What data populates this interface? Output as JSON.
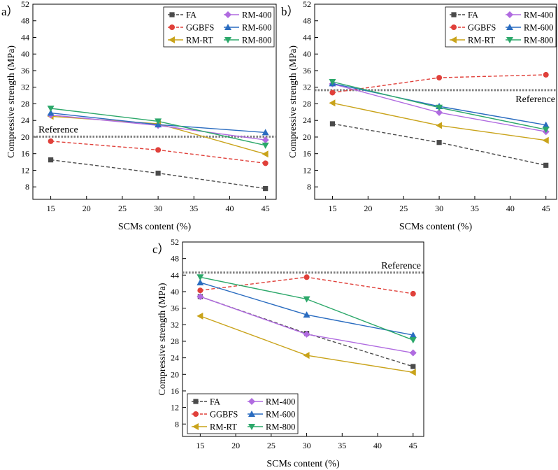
{
  "chart_data": [
    {
      "type": "line",
      "panel_label": "a）",
      "xlabel": "SCMs content (%)",
      "ylabel": "Compressive strength (MPa)",
      "xlim": [
        12.5,
        46.5
      ],
      "ylim": [
        5,
        52
      ],
      "xticks": [
        15,
        20,
        25,
        30,
        35,
        40,
        45
      ],
      "yticks": [
        8,
        12,
        16,
        20,
        24,
        28,
        32,
        36,
        40,
        44,
        48,
        52
      ],
      "x": [
        15,
        30,
        45
      ],
      "reference": {
        "label": "Reference",
        "value": 20.1
      },
      "legend_position": "top-right",
      "series": [
        {
          "name": "FA",
          "values": [
            14.5,
            11.3,
            7.6
          ]
        },
        {
          "name": "GGBFS",
          "values": [
            19.0,
            16.9,
            13.7
          ]
        },
        {
          "name": "RM-RT",
          "values": [
            25.0,
            23.2,
            15.9
          ]
        },
        {
          "name": "RM-400",
          "values": [
            25.3,
            22.8,
            19.3
          ]
        },
        {
          "name": "RM-600",
          "values": [
            25.8,
            23.0,
            21.1
          ]
        },
        {
          "name": "RM-800",
          "values": [
            26.9,
            23.8,
            18.0
          ]
        }
      ]
    },
    {
      "type": "line",
      "panel_label": "b）",
      "xlabel": "SCMs content (%)",
      "ylabel": "Compressive strength (MPa)",
      "xlim": [
        12.5,
        46.5
      ],
      "ylim": [
        5,
        52
      ],
      "xticks": [
        15,
        20,
        25,
        30,
        35,
        40,
        45
      ],
      "yticks": [
        8,
        12,
        16,
        20,
        24,
        28,
        32,
        36,
        40,
        44,
        48,
        52
      ],
      "x": [
        15,
        30,
        45
      ],
      "reference": {
        "label": "Reference",
        "value": 31.3
      },
      "legend_position": "top-right",
      "series": [
        {
          "name": "FA",
          "values": [
            23.2,
            18.7,
            13.2
          ]
        },
        {
          "name": "GGBFS",
          "values": [
            30.7,
            34.3,
            35.0
          ]
        },
        {
          "name": "RM-RT",
          "values": [
            28.2,
            22.8,
            19.2
          ]
        },
        {
          "name": "RM-400",
          "values": [
            32.8,
            25.9,
            21.3
          ]
        },
        {
          "name": "RM-600",
          "values": [
            32.9,
            27.4,
            22.9
          ]
        },
        {
          "name": "RM-800",
          "values": [
            33.3,
            27.1,
            21.8
          ]
        }
      ]
    },
    {
      "type": "line",
      "panel_label": "c）",
      "xlabel": "SCMs content (%)",
      "ylabel": "Compressive strength (MPa)",
      "xlim": [
        12.5,
        46.5
      ],
      "ylim": [
        5,
        52
      ],
      "xticks": [
        15,
        20,
        25,
        30,
        35,
        40,
        45
      ],
      "yticks": [
        8,
        12,
        16,
        20,
        24,
        28,
        32,
        36,
        40,
        44,
        48,
        52
      ],
      "x": [
        15,
        30,
        45
      ],
      "reference": {
        "label": "Reference",
        "value": 44.6
      },
      "legend_position": "bottom-left",
      "series": [
        {
          "name": "FA",
          "values": [
            38.8,
            29.9,
            21.9
          ]
        },
        {
          "name": "GGBFS",
          "values": [
            40.3,
            43.5,
            39.5
          ]
        },
        {
          "name": "RM-RT",
          "values": [
            34.1,
            24.6,
            20.5
          ]
        },
        {
          "name": "RM-400",
          "values": [
            38.8,
            29.7,
            25.2
          ]
        },
        {
          "name": "RM-600",
          "values": [
            42.2,
            34.4,
            29.5
          ]
        },
        {
          "name": "RM-800",
          "values": [
            43.5,
            38.2,
            28.3
          ]
        }
      ]
    }
  ],
  "series_style": {
    "FA": {
      "color": "#4a4a4a",
      "marker": "square",
      "dashed": true
    },
    "GGBFS": {
      "color": "#e0403a",
      "marker": "circle",
      "dashed": true
    },
    "RM-RT": {
      "color": "#c9a31a",
      "marker": "triangle-left",
      "dashed": false
    },
    "RM-400": {
      "color": "#b06be0",
      "marker": "diamond",
      "dashed": false
    },
    "RM-600": {
      "color": "#2a6cc0",
      "marker": "triangle-up",
      "dashed": false
    },
    "RM-800": {
      "color": "#2ca86a",
      "marker": "triangle-down",
      "dashed": false
    }
  },
  "reference_color": "#808080"
}
